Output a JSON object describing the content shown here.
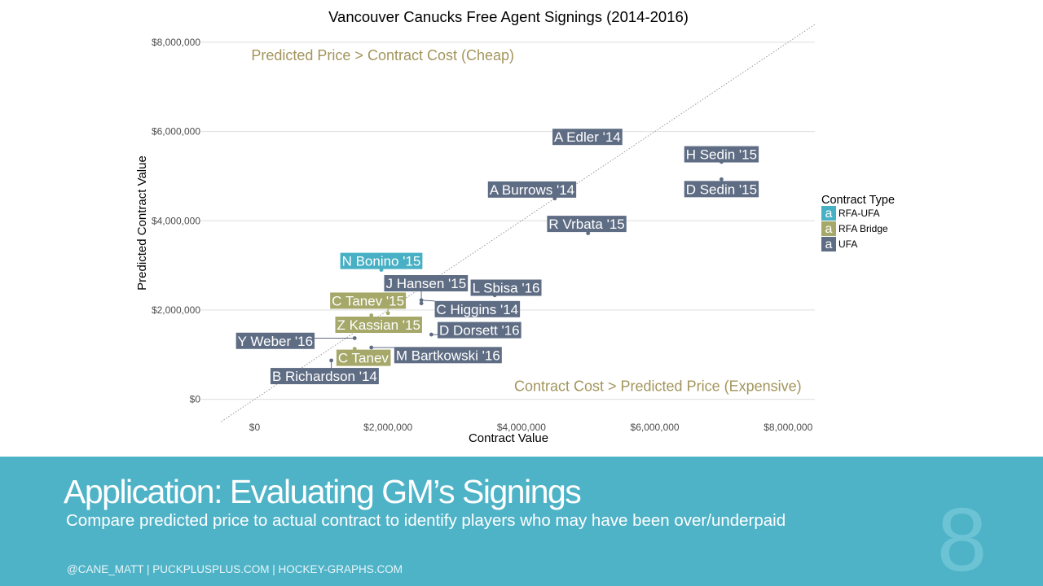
{
  "chart_data": {
    "type": "scatter",
    "title": "Vancouver Canucks Free Agent Signings (2014-2016)",
    "xlabel": "Contract Value",
    "ylabel": "Predicted Contract Value",
    "xlim": [
      -800000,
      8400000
    ],
    "ylim": [
      -500000,
      8400000
    ],
    "x_ticks": [
      0,
      2000000,
      4000000,
      6000000,
      8000000
    ],
    "x_tick_labels": [
      "$0",
      "$2,000,000",
      "$4,000,000",
      "$6,000,000",
      "$8,000,000"
    ],
    "y_ticks": [
      0,
      2000000,
      4000000,
      6000000,
      8000000
    ],
    "y_tick_labels": [
      "$0",
      "$2,000,000",
      "$4,000,000",
      "$6,000,000",
      "$8,000,000"
    ],
    "grid": "horizontal",
    "reference_line": "y = x (dotted)",
    "annotations": [
      {
        "text": "Predicted Price > Contract Cost (Cheap)",
        "x": -50000,
        "y": 7600000,
        "anchor": "start"
      },
      {
        "text": "Contract Cost > Predicted Price (Expensive)",
        "x": 8200000,
        "y": 180000,
        "anchor": "end"
      }
    ],
    "legend": {
      "title": "Contract Type",
      "position": "right",
      "glyph": "a",
      "items": [
        {
          "name": "RFA-UFA",
          "color": "#48b0c4"
        },
        {
          "name": "RFA Bridge",
          "color": "#a5a869"
        },
        {
          "name": "UFA",
          "color": "#5f6d84"
        }
      ]
    },
    "points": [
      {
        "label": "A Edler '14",
        "x": 5000000,
        "y": 5800000,
        "type": "UFA",
        "lx": 4990000,
        "ly": 5880000
      },
      {
        "label": "H Sedin '15",
        "x": 7000000,
        "y": 5320000,
        "type": "UFA",
        "lx": 7000000,
        "ly": 5490000
      },
      {
        "label": "D Sedin '15",
        "x": 7000000,
        "y": 4930000,
        "type": "UFA",
        "lx": 7000000,
        "ly": 4710000
      },
      {
        "label": "A Burrows '14",
        "x": 4500000,
        "y": 4500000,
        "type": "UFA",
        "lx": 4160000,
        "ly": 4700000
      },
      {
        "label": "R Vrbata '15",
        "x": 5000000,
        "y": 3720000,
        "type": "UFA",
        "lx": 4980000,
        "ly": 3930000
      },
      {
        "label": "N Bonino '15",
        "x": 1900000,
        "y": 2900000,
        "type": "RFA-UFA",
        "lx": 1900000,
        "ly": 3100000
      },
      {
        "label": "J Hansen '15",
        "x": 2500000,
        "y": 2150000,
        "type": "UFA",
        "lx": 2570000,
        "ly": 2600000
      },
      {
        "label": "L Sbisa '16",
        "x": 3600000,
        "y": 2330000,
        "type": "UFA",
        "lx": 3770000,
        "ly": 2500000
      },
      {
        "label": "C Tanev '15",
        "x": 2000000,
        "y": 1930000,
        "type": "RFA Bridge",
        "lx": 1700000,
        "ly": 2210000
      },
      {
        "label": "C Higgins '14",
        "x": 2500000,
        "y": 2220000,
        "type": "UFA",
        "lx": 3340000,
        "ly": 2020000
      },
      {
        "label": "Z Kassian '15",
        "x": 1750000,
        "y": 1880000,
        "type": "RFA Bridge",
        "lx": 1860000,
        "ly": 1670000
      },
      {
        "label": "D Dorsett '16",
        "x": 2650000,
        "y": 1450000,
        "type": "UFA",
        "lx": 3370000,
        "ly": 1550000
      },
      {
        "label": "Y Weber '16",
        "x": 1500000,
        "y": 1370000,
        "type": "UFA",
        "lx": 310000,
        "ly": 1310000
      },
      {
        "label": "C Tanev",
        "x": 1500000,
        "y": 1130000,
        "type": "RFA Bridge",
        "lx": 1630000,
        "ly": 930000
      },
      {
        "label": "M Bartkowski '16",
        "x": 1750000,
        "y": 1160000,
        "type": "UFA",
        "lx": 2900000,
        "ly": 990000
      },
      {
        "label": "B Richardson '14",
        "x": 1150000,
        "y": 870000,
        "type": "UFA",
        "lx": 1050000,
        "ly": 520000
      }
    ]
  },
  "slide": {
    "title": "Application: Evaluating GM’s Signings",
    "subtitle": "Compare predicted price to actual contract to identify players who may have been over/underpaid",
    "credits": "@CANE_MATT | PUCKPLUSPLUS.COM | HOCKEY-GRAPHS.COM",
    "page_number": "8",
    "footer_color": "#4fb3c8"
  }
}
